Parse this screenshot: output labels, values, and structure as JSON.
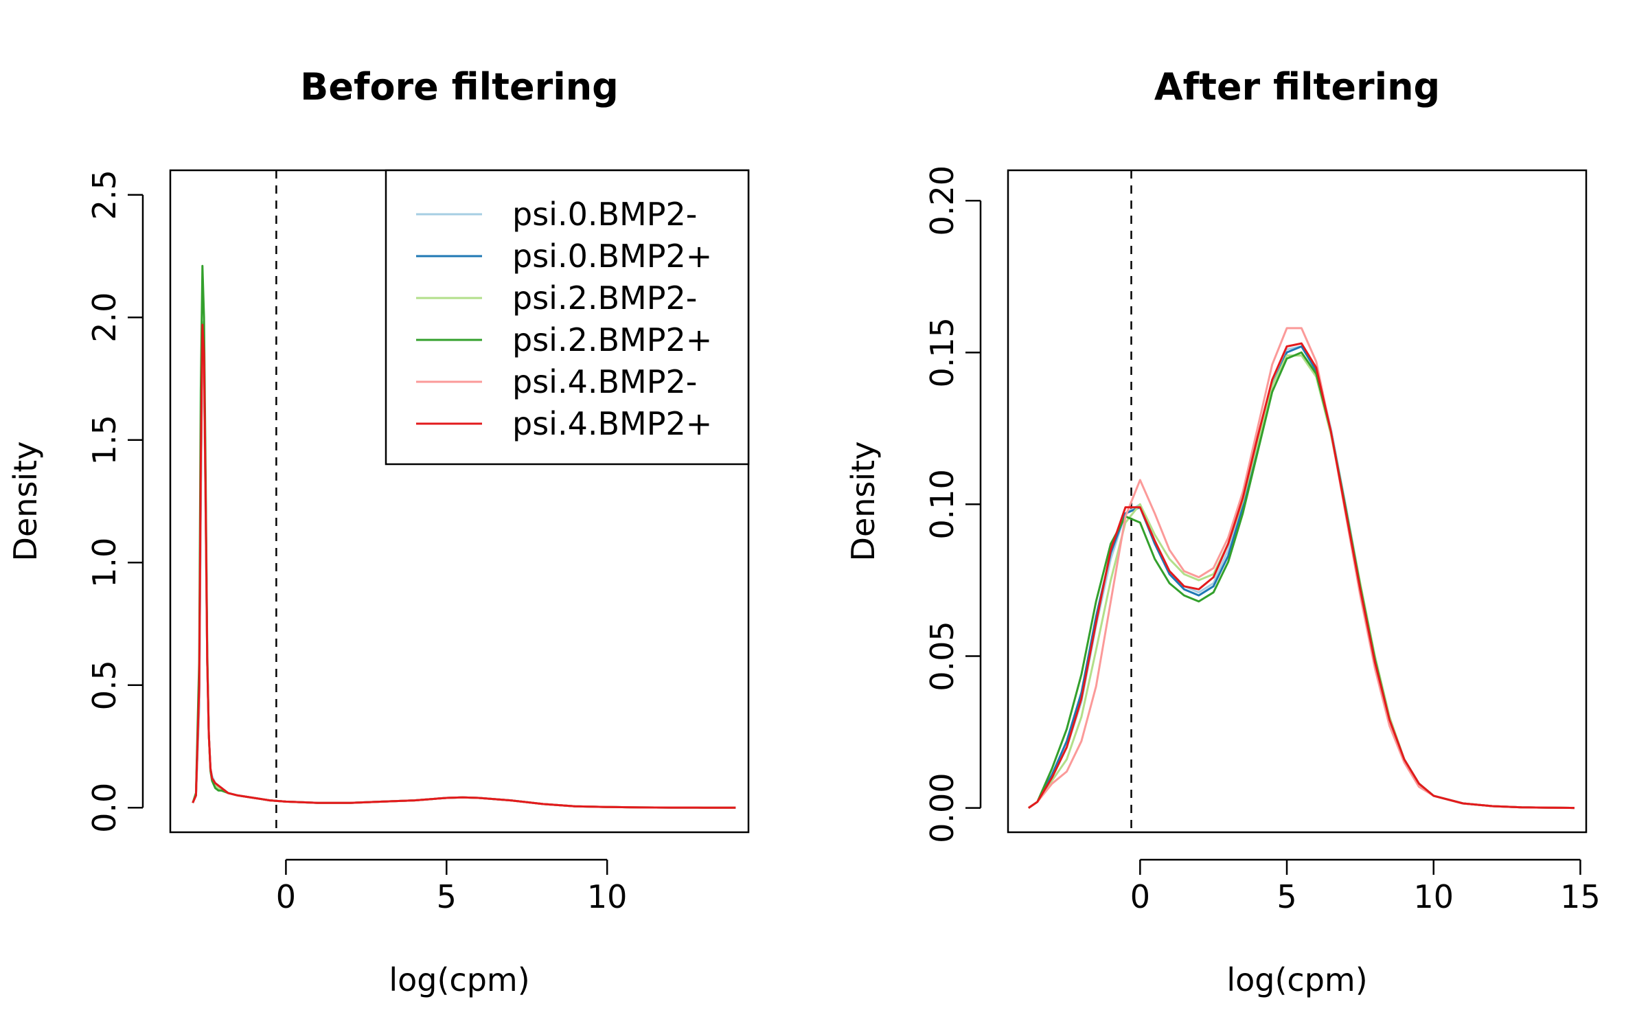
{
  "chart_data": [
    {
      "type": "line",
      "title": "Before filtering",
      "xlabel": "log(cpm)",
      "ylabel": "Density",
      "xlim": [
        -3.6,
        14.4
      ],
      "ylim": [
        -0.1,
        2.6
      ],
      "xticks": [
        0,
        5,
        10
      ],
      "xtick_labels": [
        "0",
        "5",
        "10"
      ],
      "yticks": [
        0.0,
        0.5,
        1.0,
        1.5,
        2.0,
        2.5
      ],
      "ytick_labels": [
        "0.0",
        "0.5",
        "1.0",
        "1.5",
        "2.0",
        "2.5"
      ],
      "vline": -0.3,
      "vline_style": "dashed",
      "grid": false,
      "legend": {
        "position": "top-right",
        "entries": [
          "psi.0.BMP2-",
          "psi.0.BMP2+",
          "psi.2.BMP2-",
          "psi.2.BMP2+",
          "psi.4.BMP2-",
          "psi.4.BMP2+"
        ]
      },
      "series": [
        {
          "name": "psi.0.BMP2-",
          "color": "#A6CEE3",
          "x": [
            -2.9,
            -2.8,
            -2.7,
            -2.65,
            -2.6,
            -2.55,
            -2.5,
            -2.45,
            -2.4,
            -2.35,
            -2.3,
            -2.2,
            -2.1,
            -2.0,
            -1.8,
            -1.5,
            -1.0,
            -0.5,
            0,
            1,
            2,
            3,
            4,
            5,
            5.5,
            6,
            7,
            8,
            9,
            10,
            11,
            12,
            13,
            14
          ],
          "y": [
            0.02,
            0.05,
            0.4,
            1.2,
            1.9,
            1.8,
            1.2,
            0.6,
            0.3,
            0.16,
            0.13,
            0.1,
            0.09,
            0.08,
            0.06,
            0.05,
            0.04,
            0.03,
            0.025,
            0.02,
            0.02,
            0.025,
            0.03,
            0.04,
            0.042,
            0.04,
            0.03,
            0.015,
            0.006,
            0.003,
            0.001,
            0.0005,
            0.0002,
            0.0001
          ]
        },
        {
          "name": "psi.0.BMP2+",
          "color": "#1F78B4",
          "x": [
            -2.9,
            -2.8,
            -2.7,
            -2.65,
            -2.6,
            -2.55,
            -2.5,
            -2.45,
            -2.4,
            -2.35,
            -2.3,
            -2.2,
            -2.1,
            -2.0,
            -1.8,
            -1.5,
            -1.0,
            -0.5,
            0,
            1,
            2,
            3,
            4,
            5,
            5.5,
            6,
            7,
            8,
            9,
            10,
            11,
            12,
            13,
            14
          ],
          "y": [
            0.02,
            0.05,
            0.45,
            1.3,
            1.95,
            1.85,
            1.25,
            0.6,
            0.3,
            0.16,
            0.12,
            0.1,
            0.09,
            0.08,
            0.06,
            0.05,
            0.04,
            0.03,
            0.025,
            0.02,
            0.02,
            0.025,
            0.03,
            0.04,
            0.042,
            0.04,
            0.03,
            0.015,
            0.006,
            0.003,
            0.001,
            0.0005,
            0.0002,
            0.0001
          ]
        },
        {
          "name": "psi.2.BMP2-",
          "color": "#B2DF8A",
          "x": [
            -2.9,
            -2.8,
            -2.7,
            -2.65,
            -2.6,
            -2.55,
            -2.5,
            -2.45,
            -2.4,
            -2.35,
            -2.3,
            -2.2,
            -2.1,
            -2.0,
            -1.8,
            -1.5,
            -1.0,
            -0.5,
            0,
            1,
            2,
            3,
            4,
            5,
            5.5,
            6,
            7,
            8,
            9,
            10,
            11,
            12,
            13,
            14
          ],
          "y": [
            0.02,
            0.05,
            0.5,
            1.4,
            1.98,
            1.8,
            1.2,
            0.6,
            0.3,
            0.15,
            0.12,
            0.09,
            0.08,
            0.07,
            0.06,
            0.05,
            0.04,
            0.03,
            0.025,
            0.02,
            0.02,
            0.025,
            0.03,
            0.04,
            0.042,
            0.04,
            0.03,
            0.015,
            0.006,
            0.003,
            0.001,
            0.0005,
            0.0002,
            0.0001
          ]
        },
        {
          "name": "psi.2.BMP2+",
          "color": "#33A02C",
          "x": [
            -2.9,
            -2.8,
            -2.7,
            -2.65,
            -2.6,
            -2.55,
            -2.5,
            -2.45,
            -2.4,
            -2.35,
            -2.3,
            -2.2,
            -2.1,
            -2.0,
            -1.8,
            -1.5,
            -1.0,
            -0.5,
            0,
            1,
            2,
            3,
            4,
            5,
            5.5,
            6,
            7,
            8,
            9,
            10,
            11,
            12,
            13,
            14
          ],
          "y": [
            0.02,
            0.06,
            0.6,
            1.7,
            2.21,
            2.0,
            1.35,
            0.65,
            0.3,
            0.15,
            0.11,
            0.08,
            0.07,
            0.07,
            0.06,
            0.05,
            0.04,
            0.03,
            0.025,
            0.02,
            0.02,
            0.025,
            0.03,
            0.04,
            0.042,
            0.04,
            0.03,
            0.015,
            0.006,
            0.003,
            0.001,
            0.0005,
            0.0002,
            0.0001
          ]
        },
        {
          "name": "psi.4.BMP2-",
          "color": "#FB9A99",
          "x": [
            -2.9,
            -2.8,
            -2.7,
            -2.65,
            -2.6,
            -2.55,
            -2.5,
            -2.45,
            -2.4,
            -2.35,
            -2.3,
            -2.2,
            -2.1,
            -2.0,
            -1.8,
            -1.5,
            -1.0,
            -0.5,
            0,
            1,
            2,
            3,
            4,
            5,
            5.5,
            6,
            7,
            8,
            9,
            10,
            11,
            12,
            13,
            14
          ],
          "y": [
            0.02,
            0.05,
            0.45,
            1.3,
            1.9,
            1.8,
            1.2,
            0.6,
            0.3,
            0.16,
            0.12,
            0.1,
            0.09,
            0.08,
            0.06,
            0.05,
            0.04,
            0.03,
            0.025,
            0.02,
            0.02,
            0.025,
            0.03,
            0.04,
            0.042,
            0.04,
            0.03,
            0.015,
            0.006,
            0.003,
            0.001,
            0.0005,
            0.0002,
            0.0001
          ]
        },
        {
          "name": "psi.4.BMP2+",
          "color": "#E31A1C",
          "x": [
            -2.9,
            -2.8,
            -2.7,
            -2.65,
            -2.6,
            -2.55,
            -2.5,
            -2.45,
            -2.4,
            -2.35,
            -2.3,
            -2.2,
            -2.1,
            -2.0,
            -1.8,
            -1.5,
            -1.0,
            -0.5,
            0,
            1,
            2,
            3,
            4,
            5,
            5.5,
            6,
            7,
            8,
            9,
            10,
            11,
            12,
            13,
            14
          ],
          "y": [
            0.02,
            0.05,
            0.5,
            1.4,
            1.97,
            1.85,
            1.25,
            0.6,
            0.3,
            0.16,
            0.12,
            0.1,
            0.09,
            0.08,
            0.06,
            0.05,
            0.04,
            0.03,
            0.025,
            0.02,
            0.02,
            0.025,
            0.03,
            0.04,
            0.042,
            0.04,
            0.03,
            0.015,
            0.006,
            0.003,
            0.001,
            0.0005,
            0.0002,
            0.0001
          ]
        }
      ]
    },
    {
      "type": "line",
      "title": "After filtering",
      "xlabel": "log(cpm)",
      "ylabel": "Density",
      "xlim": [
        -4.5,
        15.2
      ],
      "ylim": [
        -0.008,
        0.21
      ],
      "xticks": [
        0,
        5,
        10,
        15
      ],
      "xtick_labels": [
        "0",
        "5",
        "10",
        "15"
      ],
      "yticks": [
        0.0,
        0.05,
        0.1,
        0.15,
        0.2
      ],
      "ytick_labels": [
        "0.00",
        "0.05",
        "0.10",
        "0.15",
        "0.20"
      ],
      "vline": -0.3,
      "vline_style": "dashed",
      "grid": false,
      "series": [
        {
          "name": "psi.0.BMP2-",
          "color": "#A6CEE3",
          "x": [
            -3.8,
            -3.5,
            -3,
            -2.5,
            -2,
            -1.5,
            -1,
            -0.5,
            0,
            0.5,
            1,
            1.5,
            2,
            2.5,
            3,
            3.5,
            4,
            4.5,
            5,
            5.5,
            6,
            6.5,
            7,
            7.5,
            8,
            8.5,
            9,
            9.5,
            10,
            11,
            12,
            13,
            14,
            14.8
          ],
          "y": [
            0,
            0.002,
            0.01,
            0.02,
            0.035,
            0.06,
            0.082,
            0.097,
            0.1,
            0.088,
            0.078,
            0.073,
            0.071,
            0.074,
            0.085,
            0.1,
            0.12,
            0.14,
            0.151,
            0.152,
            0.145,
            0.125,
            0.1,
            0.074,
            0.05,
            0.03,
            0.016,
            0.008,
            0.004,
            0.0015,
            0.0006,
            0.0002,
            0.0001,
            0
          ]
        },
        {
          "name": "psi.0.BMP2+",
          "color": "#1F78B4",
          "x": [
            -3.8,
            -3.5,
            -3,
            -2.5,
            -2,
            -1.5,
            -1,
            -0.5,
            0,
            0.5,
            1,
            1.5,
            2,
            2.5,
            3,
            3.5,
            4,
            4.5,
            5,
            5.5,
            6,
            6.5,
            7,
            7.5,
            8,
            8.5,
            9,
            9.5,
            10,
            11,
            12,
            13,
            14,
            14.8
          ],
          "y": [
            0,
            0.002,
            0.011,
            0.022,
            0.038,
            0.063,
            0.084,
            0.097,
            0.099,
            0.087,
            0.077,
            0.072,
            0.07,
            0.073,
            0.083,
            0.099,
            0.119,
            0.139,
            0.15,
            0.152,
            0.144,
            0.124,
            0.099,
            0.073,
            0.049,
            0.029,
            0.016,
            0.008,
            0.004,
            0.0015,
            0.0006,
            0.0002,
            0.0001,
            0
          ]
        },
        {
          "name": "psi.2.BMP2-",
          "color": "#B2DF8A",
          "x": [
            -3.8,
            -3.5,
            -3,
            -2.5,
            -2,
            -1.5,
            -1,
            -0.5,
            0,
            0.5,
            1,
            1.5,
            2,
            2.5,
            3,
            3.5,
            4,
            4.5,
            5,
            5.5,
            6,
            6.5,
            7,
            7.5,
            8,
            8.5,
            9,
            9.5,
            10,
            11,
            12,
            13,
            14,
            14.8
          ],
          "y": [
            0,
            0.002,
            0.009,
            0.016,
            0.03,
            0.052,
            0.075,
            0.094,
            0.1,
            0.09,
            0.082,
            0.077,
            0.075,
            0.077,
            0.087,
            0.101,
            0.12,
            0.139,
            0.149,
            0.149,
            0.142,
            0.123,
            0.099,
            0.074,
            0.05,
            0.03,
            0.016,
            0.008,
            0.004,
            0.0015,
            0.0006,
            0.0002,
            0.0001,
            0
          ]
        },
        {
          "name": "psi.2.BMP2+",
          "color": "#33A02C",
          "x": [
            -3.8,
            -3.5,
            -3,
            -2.5,
            -2,
            -1.5,
            -1,
            -0.5,
            0,
            0.5,
            1,
            1.5,
            2,
            2.5,
            3,
            3.5,
            4,
            4.5,
            5,
            5.5,
            6,
            6.5,
            7,
            7.5,
            8,
            8.5,
            9,
            9.5,
            10,
            11,
            12,
            13,
            14,
            14.8
          ],
          "y": [
            0,
            0.002,
            0.013,
            0.026,
            0.044,
            0.068,
            0.087,
            0.096,
            0.094,
            0.082,
            0.074,
            0.07,
            0.068,
            0.071,
            0.081,
            0.097,
            0.117,
            0.137,
            0.148,
            0.15,
            0.143,
            0.124,
            0.099,
            0.073,
            0.049,
            0.029,
            0.016,
            0.008,
            0.004,
            0.0015,
            0.0006,
            0.0002,
            0.0001,
            0
          ]
        },
        {
          "name": "psi.4.BMP2-",
          "color": "#FB9A99",
          "x": [
            -3.8,
            -3.5,
            -3,
            -2.5,
            -2,
            -1.5,
            -1,
            -0.5,
            0,
            0.5,
            1,
            1.5,
            2,
            2.5,
            3,
            3.5,
            4,
            4.5,
            5,
            5.5,
            6,
            6.5,
            7,
            7.5,
            8,
            8.5,
            9,
            9.5,
            10,
            11,
            12,
            13,
            14,
            14.8
          ],
          "y": [
            0,
            0.002,
            0.008,
            0.012,
            0.022,
            0.04,
            0.068,
            0.096,
            0.108,
            0.097,
            0.085,
            0.078,
            0.076,
            0.079,
            0.089,
            0.104,
            0.125,
            0.146,
            0.158,
            0.158,
            0.147,
            0.124,
            0.097,
            0.07,
            0.046,
            0.027,
            0.015,
            0.007,
            0.004,
            0.0015,
            0.0006,
            0.0002,
            0.0001,
            0
          ]
        },
        {
          "name": "psi.4.BMP2+",
          "color": "#E31A1C",
          "x": [
            -3.8,
            -3.5,
            -3,
            -2.5,
            -2,
            -1.5,
            -1,
            -0.5,
            0,
            0.5,
            1,
            1.5,
            2,
            2.5,
            3,
            3.5,
            4,
            4.5,
            5,
            5.5,
            6,
            6.5,
            7,
            7.5,
            8,
            8.5,
            9,
            9.5,
            10,
            11,
            12,
            13,
            14,
            14.8
          ],
          "y": [
            0,
            0.002,
            0.01,
            0.02,
            0.036,
            0.061,
            0.085,
            0.099,
            0.099,
            0.088,
            0.078,
            0.073,
            0.072,
            0.076,
            0.087,
            0.102,
            0.122,
            0.141,
            0.152,
            0.153,
            0.145,
            0.124,
            0.098,
            0.072,
            0.048,
            0.029,
            0.016,
            0.008,
            0.004,
            0.0015,
            0.0006,
            0.0002,
            0.0001,
            0
          ]
        }
      ]
    }
  ]
}
